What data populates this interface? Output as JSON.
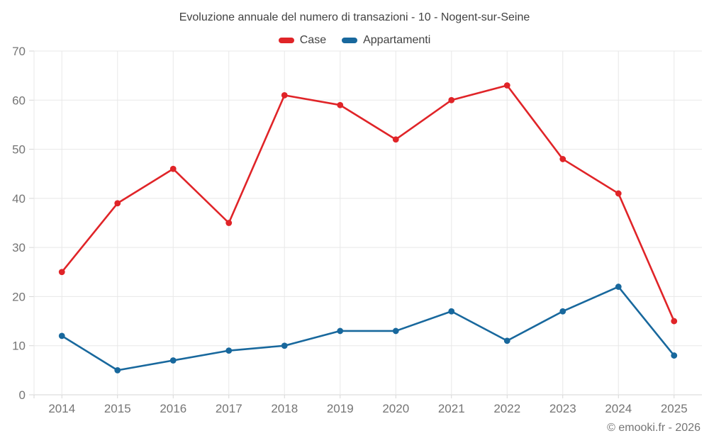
{
  "page": {
    "background": "#ffffff"
  },
  "chart_data": {
    "type": "line",
    "title": "Evoluzione annuale del numero di transazioni - 10 - Nogent-sur-Seine",
    "categories": [
      "2014",
      "2015",
      "2016",
      "2017",
      "2018",
      "2019",
      "2020",
      "2021",
      "2022",
      "2023",
      "2024",
      "2025"
    ],
    "series": [
      {
        "name": "Case",
        "color": "#e02428",
        "values": [
          25,
          39,
          46,
          35,
          61,
          59,
          52,
          60,
          63,
          48,
          41,
          15
        ]
      },
      {
        "name": "Appartamenti",
        "color": "#18689d",
        "values": [
          12,
          5,
          7,
          9,
          10,
          13,
          13,
          17,
          11,
          17,
          22,
          8
        ]
      }
    ],
    "xlabel": "",
    "ylabel": "",
    "ylim": [
      0,
      70
    ],
    "yticks": [
      0,
      10,
      20,
      30,
      40,
      50,
      60,
      70
    ],
    "grid": true,
    "legend_position": "top",
    "colors": {
      "grid_color": "#e8e8e8",
      "axis_color": "#d6d6d6",
      "tick_label_color": "#757575",
      "title_color": "#424242",
      "legend_text_color": "#424242"
    }
  },
  "footer": {
    "copyright": "© emooki.fr - 2026"
  }
}
